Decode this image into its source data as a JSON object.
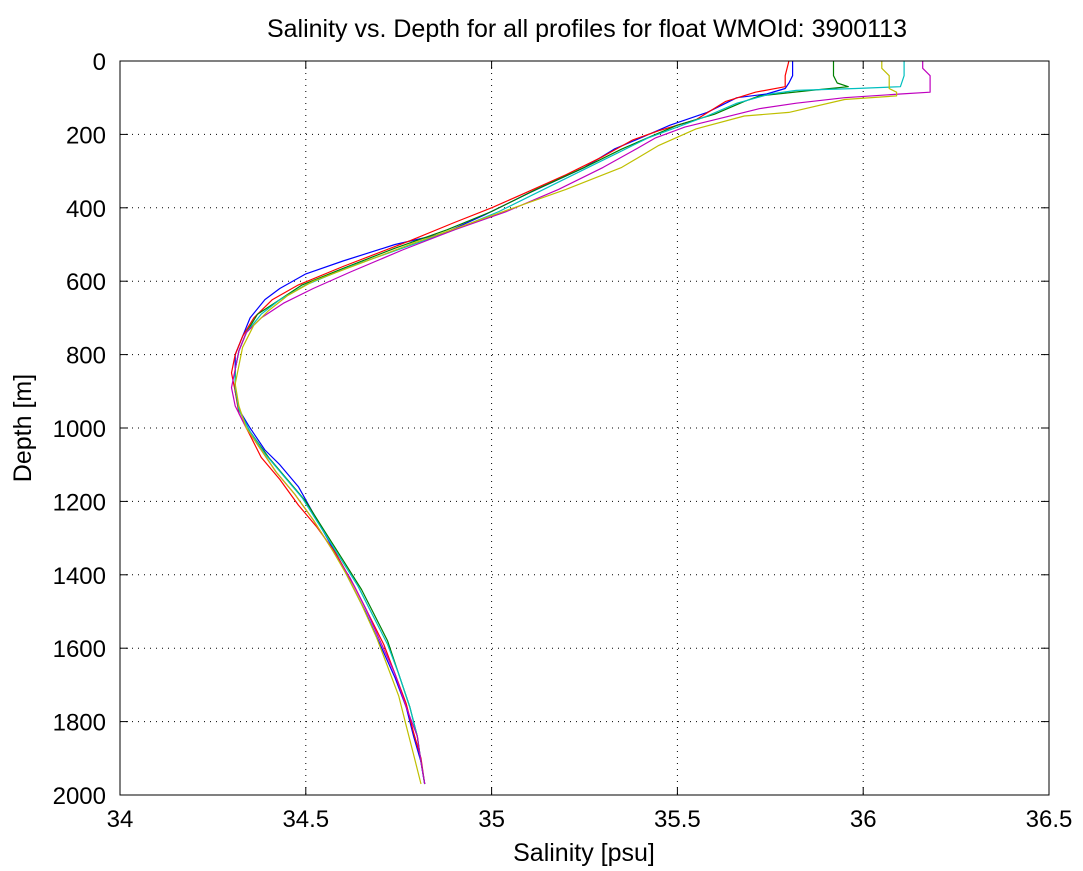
{
  "chart_data": {
    "type": "line",
    "title": "Salinity vs. Depth for all profiles for float WMOId: 3900113",
    "xlabel": "Salinity [psu]",
    "ylabel": "Depth [m]",
    "xlim": [
      34,
      36.5
    ],
    "ylim": [
      0,
      2000
    ],
    "y_reversed": true,
    "grid": true,
    "legend": "none",
    "xticks": [
      "34",
      "34.5",
      "35",
      "35.5",
      "36",
      "36.5"
    ],
    "yticks": [
      "0",
      "200",
      "400",
      "600",
      "800",
      "1000",
      "1200",
      "1400",
      "1600",
      "1800",
      "2000"
    ],
    "series": [
      {
        "color": "#0000ff",
        "points": [
          [
            35.81,
            0
          ],
          [
            35.81,
            40
          ],
          [
            35.8,
            60
          ],
          [
            35.79,
            75
          ],
          [
            35.74,
            90
          ],
          [
            35.66,
            100
          ],
          [
            35.58,
            140
          ],
          [
            35.48,
            175
          ],
          [
            35.4,
            210
          ],
          [
            35.33,
            240
          ],
          [
            35.25,
            290
          ],
          [
            35.1,
            360
          ],
          [
            34.98,
            420
          ],
          [
            34.87,
            470
          ],
          [
            34.74,
            500
          ],
          [
            34.6,
            545
          ],
          [
            34.5,
            580
          ],
          [
            34.43,
            620
          ],
          [
            34.39,
            650
          ],
          [
            34.35,
            700
          ],
          [
            34.33,
            750
          ],
          [
            34.31,
            800
          ],
          [
            34.31,
            850
          ],
          [
            34.31,
            900
          ],
          [
            34.32,
            950
          ],
          [
            34.35,
            1000
          ],
          [
            34.39,
            1060
          ],
          [
            34.43,
            1100
          ],
          [
            34.48,
            1160
          ],
          [
            34.53,
            1250
          ],
          [
            34.58,
            1340
          ],
          [
            34.62,
            1420
          ],
          [
            34.66,
            1500
          ],
          [
            34.7,
            1590
          ],
          [
            34.74,
            1680
          ],
          [
            34.77,
            1760
          ],
          [
            34.79,
            1840
          ],
          [
            34.81,
            1910
          ],
          [
            34.82,
            1970
          ]
        ]
      },
      {
        "color": "#ff0000",
        "points": [
          [
            35.8,
            0
          ],
          [
            35.79,
            40
          ],
          [
            35.79,
            70
          ],
          [
            35.71,
            85
          ],
          [
            35.63,
            110
          ],
          [
            35.55,
            160
          ],
          [
            35.45,
            190
          ],
          [
            35.38,
            215
          ],
          [
            35.3,
            260
          ],
          [
            35.2,
            310
          ],
          [
            35.09,
            360
          ],
          [
            35.0,
            400
          ],
          [
            34.9,
            440
          ],
          [
            34.78,
            490
          ],
          [
            34.6,
            560
          ],
          [
            34.48,
            610
          ],
          [
            34.41,
            650
          ],
          [
            34.36,
            700
          ],
          [
            34.33,
            750
          ],
          [
            34.31,
            800
          ],
          [
            34.3,
            850
          ],
          [
            34.31,
            900
          ],
          [
            34.32,
            960
          ],
          [
            34.35,
            1020
          ],
          [
            34.38,
            1080
          ],
          [
            34.43,
            1140
          ],
          [
            34.48,
            1210
          ],
          [
            34.53,
            1270
          ],
          [
            34.58,
            1340
          ],
          [
            34.63,
            1430
          ],
          [
            34.67,
            1510
          ],
          [
            34.71,
            1590
          ],
          [
            34.74,
            1670
          ],
          [
            34.77,
            1750
          ],
          [
            34.79,
            1830
          ],
          [
            34.81,
            1900
          ],
          [
            34.82,
            1970
          ]
        ]
      },
      {
        "color": "#008000",
        "points": [
          [
            35.92,
            0
          ],
          [
            35.92,
            40
          ],
          [
            35.93,
            60
          ],
          [
            35.96,
            70
          ],
          [
            35.86,
            80
          ],
          [
            35.72,
            95
          ],
          [
            35.68,
            110
          ],
          [
            35.6,
            145
          ],
          [
            35.5,
            175
          ],
          [
            35.43,
            205
          ],
          [
            35.35,
            240
          ],
          [
            35.25,
            290
          ],
          [
            35.12,
            350
          ],
          [
            35.0,
            410
          ],
          [
            34.88,
            460
          ],
          [
            34.74,
            510
          ],
          [
            34.6,
            565
          ],
          [
            34.49,
            610
          ],
          [
            34.43,
            650
          ],
          [
            34.37,
            690
          ],
          [
            34.34,
            740
          ],
          [
            34.32,
            790
          ],
          [
            34.31,
            840
          ],
          [
            34.31,
            890
          ],
          [
            34.32,
            950
          ],
          [
            34.35,
            1010
          ],
          [
            34.4,
            1080
          ],
          [
            34.45,
            1140
          ],
          [
            34.5,
            1200
          ],
          [
            34.55,
            1280
          ],
          [
            34.6,
            1360
          ],
          [
            34.65,
            1440
          ],
          [
            34.68,
            1500
          ],
          [
            34.72,
            1580
          ],
          [
            34.75,
            1670
          ],
          [
            34.78,
            1760
          ],
          [
            34.8,
            1840
          ],
          [
            34.81,
            1910
          ],
          [
            34.82,
            1970
          ]
        ]
      },
      {
        "color": "#00bfbf",
        "points": [
          [
            36.11,
            0
          ],
          [
            36.11,
            40
          ],
          [
            36.1,
            70
          ],
          [
            35.98,
            75
          ],
          [
            35.82,
            80
          ],
          [
            35.75,
            90
          ],
          [
            35.66,
            115
          ],
          [
            35.58,
            150
          ],
          [
            35.5,
            180
          ],
          [
            35.42,
            210
          ],
          [
            35.34,
            250
          ],
          [
            35.26,
            290
          ],
          [
            35.14,
            350
          ],
          [
            35.02,
            410
          ],
          [
            34.9,
            460
          ],
          [
            34.76,
            510
          ],
          [
            34.62,
            560
          ],
          [
            34.5,
            610
          ],
          [
            34.43,
            650
          ],
          [
            34.38,
            690
          ],
          [
            34.34,
            740
          ],
          [
            34.32,
            790
          ],
          [
            34.31,
            840
          ],
          [
            34.31,
            890
          ],
          [
            34.32,
            950
          ],
          [
            34.35,
            1010
          ],
          [
            34.39,
            1070
          ],
          [
            34.44,
            1130
          ],
          [
            34.49,
            1190
          ],
          [
            34.54,
            1270
          ],
          [
            34.59,
            1350
          ],
          [
            34.64,
            1430
          ],
          [
            34.68,
            1510
          ],
          [
            34.72,
            1590
          ],
          [
            34.75,
            1670
          ],
          [
            34.78,
            1760
          ],
          [
            34.8,
            1840
          ],
          [
            34.81,
            1910
          ],
          [
            34.82,
            1970
          ]
        ]
      },
      {
        "color": "#bf00bf",
        "points": [
          [
            36.16,
            0
          ],
          [
            36.16,
            20
          ],
          [
            36.18,
            40
          ],
          [
            36.18,
            85
          ],
          [
            36.1,
            90
          ],
          [
            35.95,
            100
          ],
          [
            35.82,
            115
          ],
          [
            35.72,
            130
          ],
          [
            35.62,
            155
          ],
          [
            35.52,
            180
          ],
          [
            35.44,
            210
          ],
          [
            35.38,
            245
          ],
          [
            35.3,
            290
          ],
          [
            35.18,
            350
          ],
          [
            35.04,
            410
          ],
          [
            34.9,
            460
          ],
          [
            34.76,
            515
          ],
          [
            34.62,
            575
          ],
          [
            34.52,
            620
          ],
          [
            34.44,
            660
          ],
          [
            34.38,
            700
          ],
          [
            34.34,
            740
          ],
          [
            34.32,
            790
          ],
          [
            34.31,
            840
          ],
          [
            34.3,
            890
          ],
          [
            34.31,
            940
          ],
          [
            34.34,
            1000
          ],
          [
            34.38,
            1060
          ],
          [
            34.42,
            1120
          ],
          [
            34.47,
            1180
          ],
          [
            34.52,
            1250
          ],
          [
            34.57,
            1330
          ],
          [
            34.62,
            1410
          ],
          [
            34.66,
            1490
          ],
          [
            34.7,
            1580
          ],
          [
            34.74,
            1670
          ],
          [
            34.77,
            1760
          ],
          [
            34.8,
            1840
          ],
          [
            34.81,
            1910
          ],
          [
            34.82,
            1970
          ]
        ]
      },
      {
        "color": "#bfbf00",
        "points": [
          [
            36.05,
            0
          ],
          [
            36.05,
            20
          ],
          [
            36.07,
            40
          ],
          [
            36.07,
            75
          ],
          [
            36.09,
            85
          ],
          [
            36.09,
            95
          ],
          [
            35.95,
            105
          ],
          [
            35.8,
            140
          ],
          [
            35.68,
            150
          ],
          [
            35.55,
            185
          ],
          [
            35.45,
            230
          ],
          [
            35.35,
            290
          ],
          [
            35.2,
            350
          ],
          [
            35.06,
            400
          ],
          [
            34.92,
            450
          ],
          [
            34.78,
            500
          ],
          [
            34.65,
            550
          ],
          [
            34.52,
            600
          ],
          [
            34.45,
            640
          ],
          [
            34.4,
            680
          ],
          [
            34.36,
            720
          ],
          [
            34.33,
            780
          ],
          [
            34.32,
            830
          ],
          [
            34.31,
            880
          ],
          [
            34.32,
            940
          ],
          [
            34.34,
            1000
          ],
          [
            34.38,
            1060
          ],
          [
            34.42,
            1120
          ],
          [
            34.47,
            1180
          ],
          [
            34.52,
            1250
          ],
          [
            34.57,
            1330
          ],
          [
            34.61,
            1400
          ],
          [
            34.65,
            1480
          ],
          [
            34.69,
            1570
          ],
          [
            34.72,
            1650
          ],
          [
            34.75,
            1730
          ],
          [
            34.77,
            1810
          ],
          [
            34.79,
            1890
          ],
          [
            34.81,
            1970
          ]
        ]
      }
    ]
  }
}
